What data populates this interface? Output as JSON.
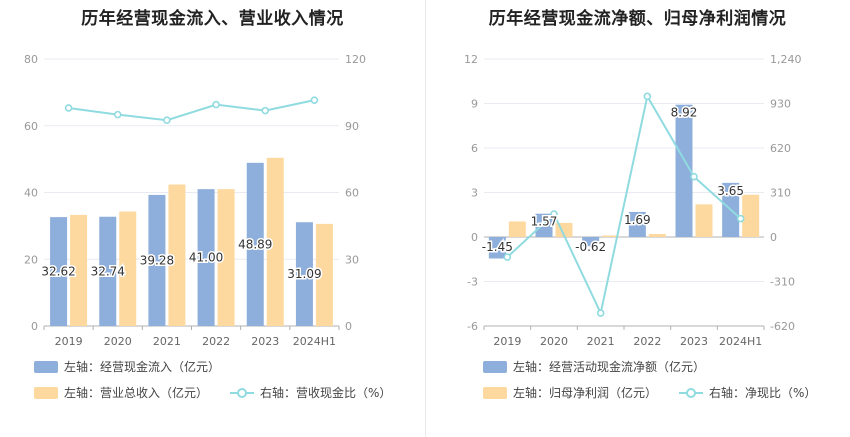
{
  "colors": {
    "axis": "#999999",
    "grid": "#e8ebf2",
    "bar1": "#8eaedb",
    "bar2": "#fdd9a0",
    "line": "#8fdbe0",
    "label": "#333333"
  },
  "chart_data": [
    {
      "type": "bar",
      "title": "历年经营现金流入、营业收入情况",
      "categories": [
        "2019",
        "2020",
        "2021",
        "2022",
        "2023",
        "2024H1"
      ],
      "y_left": {
        "min": 0,
        "max": 80,
        "ticks": [
          0,
          20,
          40,
          60,
          80
        ],
        "tick_labels": [
          "0",
          "20",
          "40",
          "60",
          "80"
        ]
      },
      "y_right": {
        "min": 0,
        "max": 120,
        "ticks": [
          0,
          30,
          60,
          90,
          120
        ],
        "tick_labels": [
          "0",
          "30",
          "60",
          "90",
          "120"
        ]
      },
      "grid": true,
      "legend_position": "bottom",
      "series": [
        {
          "name": "左轴：经营现金流入（亿元）",
          "kind": "bar",
          "axis": "left",
          "values": [
            32.62,
            32.74,
            39.28,
            41.0,
            48.89,
            31.09
          ],
          "labels": [
            "32.62",
            "32.74",
            "39.28",
            "41.00",
            "48.89",
            "31.09"
          ]
        },
        {
          "name": "左轴：营业总收入（亿元）",
          "kind": "bar",
          "axis": "left",
          "values": [
            33.3,
            34.3,
            42.4,
            41.0,
            50.4,
            30.6
          ]
        },
        {
          "name": "右轴：营收现金比（%）",
          "kind": "line",
          "axis": "right",
          "values": [
            98,
            95,
            92.5,
            99.5,
            96.8,
            101.5
          ]
        }
      ]
    },
    {
      "type": "bar",
      "title": "历年经营现金流净额、归母净利润情况",
      "categories": [
        "2019",
        "2020",
        "2021",
        "2022",
        "2023",
        "2024H1"
      ],
      "y_left": {
        "min": -6,
        "max": 12,
        "ticks": [
          -6,
          -3,
          0,
          3,
          6,
          9,
          12
        ],
        "tick_labels": [
          "-6",
          "-3",
          "0",
          "3",
          "6",
          "9",
          "12"
        ]
      },
      "y_right": {
        "min": -620,
        "max": 1240,
        "ticks": [
          -620,
          -310,
          0,
          310,
          620,
          930,
          1240
        ],
        "tick_labels": [
          "-620",
          "-310",
          "0",
          "310",
          "620",
          "930",
          "1,240"
        ]
      },
      "grid": true,
      "legend_position": "bottom",
      "series": [
        {
          "name": "左轴：经营活动现金流净额（亿元）",
          "kind": "bar",
          "axis": "left",
          "values": [
            -1.45,
            1.57,
            -0.62,
            1.69,
            8.92,
            3.65
          ],
          "labels": [
            "-1.45",
            "1.57",
            "-0.62",
            "1.69",
            "8.92",
            "3.65"
          ]
        },
        {
          "name": "左轴：归母净利润（亿元）",
          "kind": "bar",
          "axis": "left",
          "values": [
            1.05,
            0.95,
            0.1,
            0.2,
            2.2,
            2.85
          ]
        },
        {
          "name": "右轴：净现比（%）",
          "kind": "line",
          "axis": "right",
          "values": [
            -140,
            160,
            -530,
            980,
            420,
            128
          ]
        }
      ]
    }
  ]
}
